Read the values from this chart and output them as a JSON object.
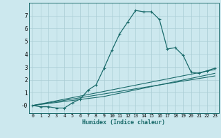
{
  "xlabel": "Humidex (Indice chaleur)",
  "bg_color": "#cce8ee",
  "grid_color": "#aacdd5",
  "line_color": "#1a6b6b",
  "xlim": [
    -0.5,
    23.5
  ],
  "ylim": [
    -0.6,
    8.0
  ],
  "yticks": [
    0,
    1,
    2,
    3,
    4,
    5,
    6,
    7
  ],
  "ytick_labels": [
    "-0",
    "1",
    "2",
    "3",
    "4",
    "5",
    "6",
    "7"
  ],
  "xticks": [
    0,
    1,
    2,
    3,
    4,
    5,
    6,
    7,
    8,
    9,
    10,
    11,
    12,
    13,
    14,
    15,
    16,
    17,
    18,
    19,
    20,
    21,
    22,
    23
  ],
  "line1_x": [
    0,
    1,
    2,
    3,
    4,
    5,
    6,
    7,
    8,
    9,
    10,
    11,
    12,
    13,
    14,
    15,
    16,
    17,
    18,
    19,
    20,
    21,
    22,
    23
  ],
  "line1_y": [
    0.0,
    -0.1,
    -0.1,
    -0.2,
    -0.2,
    0.2,
    0.5,
    1.2,
    1.6,
    2.9,
    4.3,
    5.6,
    6.5,
    7.4,
    7.3,
    7.3,
    6.7,
    4.4,
    4.5,
    3.9,
    2.6,
    2.5,
    2.7,
    2.9
  ],
  "line2_x": [
    0,
    23
  ],
  "line2_y": [
    0,
    2.8
  ],
  "line3_x": [
    0,
    23
  ],
  "line3_y": [
    0,
    2.3
  ],
  "line4_x": [
    0,
    9,
    23
  ],
  "line4_y": [
    0,
    0.7,
    2.5
  ]
}
